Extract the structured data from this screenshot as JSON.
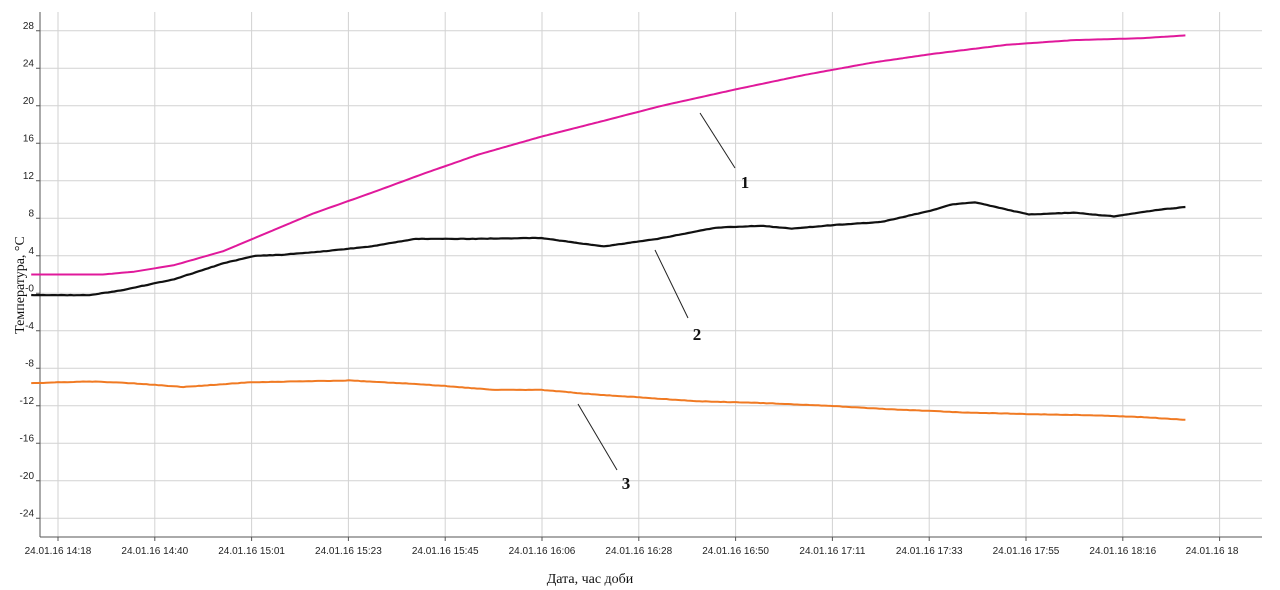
{
  "chart_data": {
    "type": "line",
    "xlabel": "Дата, час доби",
    "ylabel": "Температура, °С",
    "x_ticks": [
      "24.01.16 14:18",
      "24.01.16 14:40",
      "24.01.16 15:01",
      "24.01.16 15:23",
      "24.01.16 15:45",
      "24.01.16 16:06",
      "24.01.16 16:28",
      "24.01.16 16:50",
      "24.01.16 17:11",
      "24.01.16 17:33",
      "24.01.16 17:55",
      "24.01.16 18:16",
      "24.01.16 18"
    ],
    "y_ticks": [
      "28",
      "24",
      "20",
      "16",
      "12",
      "8",
      "4",
      "-0",
      "-4",
      "-8",
      "-12",
      "-16",
      "-20",
      "-24"
    ],
    "ylim": [
      -26,
      30
    ],
    "grid": true,
    "series": [
      {
        "name": "1",
        "color": "#e0199b",
        "x": [
          "24.01.16 14:12",
          "24.01.16 14:18",
          "24.01.16 14:28",
          "24.01.16 14:35",
          "24.01.16 14:44",
          "24.01.16 14:55",
          "24.01.16 15:05",
          "24.01.16 15:15",
          "24.01.16 15:28",
          "24.01.16 15:40",
          "24.01.16 15:52",
          "24.01.16 16:06",
          "24.01.16 16:20",
          "24.01.16 16:33",
          "24.01.16 16:50",
          "24.01.16 17:05",
          "24.01.16 17:20",
          "24.01.16 17:33",
          "24.01.16 17:50",
          "24.01.16 18:05",
          "24.01.16 18:20",
          "24.01.16 18:30"
        ],
        "y": [
          2.0,
          2.0,
          2.0,
          2.3,
          3.0,
          4.5,
          6.5,
          8.5,
          10.7,
          12.8,
          14.8,
          16.7,
          18.4,
          20.0,
          21.8,
          23.3,
          24.6,
          25.5,
          26.5,
          27.0,
          27.2,
          27.5
        ]
      },
      {
        "name": "2",
        "color": "#111111",
        "x": [
          "24.01.16 14:12",
          "24.01.16 14:18",
          "24.01.16 14:25",
          "24.01.16 14:32",
          "24.01.16 14:44",
          "24.01.16 14:55",
          "24.01.16 15:02",
          "24.01.16 15:08",
          "24.01.16 15:18",
          "24.01.16 15:28",
          "24.01.16 15:38",
          "24.01.16 15:50",
          "24.01.16 16:06",
          "24.01.16 16:12",
          "24.01.16 16:20",
          "24.01.16 16:32",
          "24.01.16 16:45",
          "24.01.16 16:55",
          "24.01.16 17:02",
          "24.01.16 17:12",
          "24.01.16 17:22",
          "24.01.16 17:33",
          "24.01.16 17:38",
          "24.01.16 17:43",
          "24.01.16 17:55",
          "24.01.16 18:05",
          "24.01.16 18:14",
          "24.01.16 18:24",
          "24.01.16 18:30"
        ],
        "y": [
          -0.2,
          -0.2,
          -0.2,
          0.3,
          1.5,
          3.2,
          4.0,
          4.1,
          4.5,
          5.0,
          5.8,
          5.8,
          5.9,
          5.5,
          5.0,
          5.8,
          7.0,
          7.2,
          6.9,
          7.3,
          7.6,
          8.8,
          9.5,
          9.7,
          8.4,
          8.6,
          8.2,
          8.9,
          9.2
        ]
      },
      {
        "name": "3",
        "color": "#f07a23",
        "x": [
          "24.01.16 14:12",
          "24.01.16 14:18",
          "24.01.16 14:25",
          "24.01.16 14:35",
          "24.01.16 14:46",
          "24.01.16 15:01",
          "24.01.16 15:12",
          "24.01.16 15:23",
          "24.01.16 15:35",
          "24.01.16 15:45",
          "24.01.16 15:55",
          "24.01.16 16:06",
          "24.01.16 16:18",
          "24.01.16 16:28",
          "24.01.16 16:40",
          "24.01.16 16:55",
          "24.01.16 17:10",
          "24.01.16 17:25",
          "24.01.16 17:40",
          "24.01.16 17:55",
          "24.01.16 18:08",
          "24.01.16 18:20",
          "24.01.16 18:30"
        ],
        "y": [
          -9.6,
          -9.5,
          -9.4,
          -9.6,
          -10.0,
          -9.5,
          -9.4,
          -9.3,
          -9.6,
          -9.9,
          -10.3,
          -10.3,
          -10.8,
          -11.1,
          -11.5,
          -11.7,
          -12.0,
          -12.4,
          -12.7,
          -12.9,
          -13.0,
          -13.2,
          -13.5
        ]
      }
    ],
    "annotations": [
      "1",
      "2",
      "3"
    ]
  }
}
